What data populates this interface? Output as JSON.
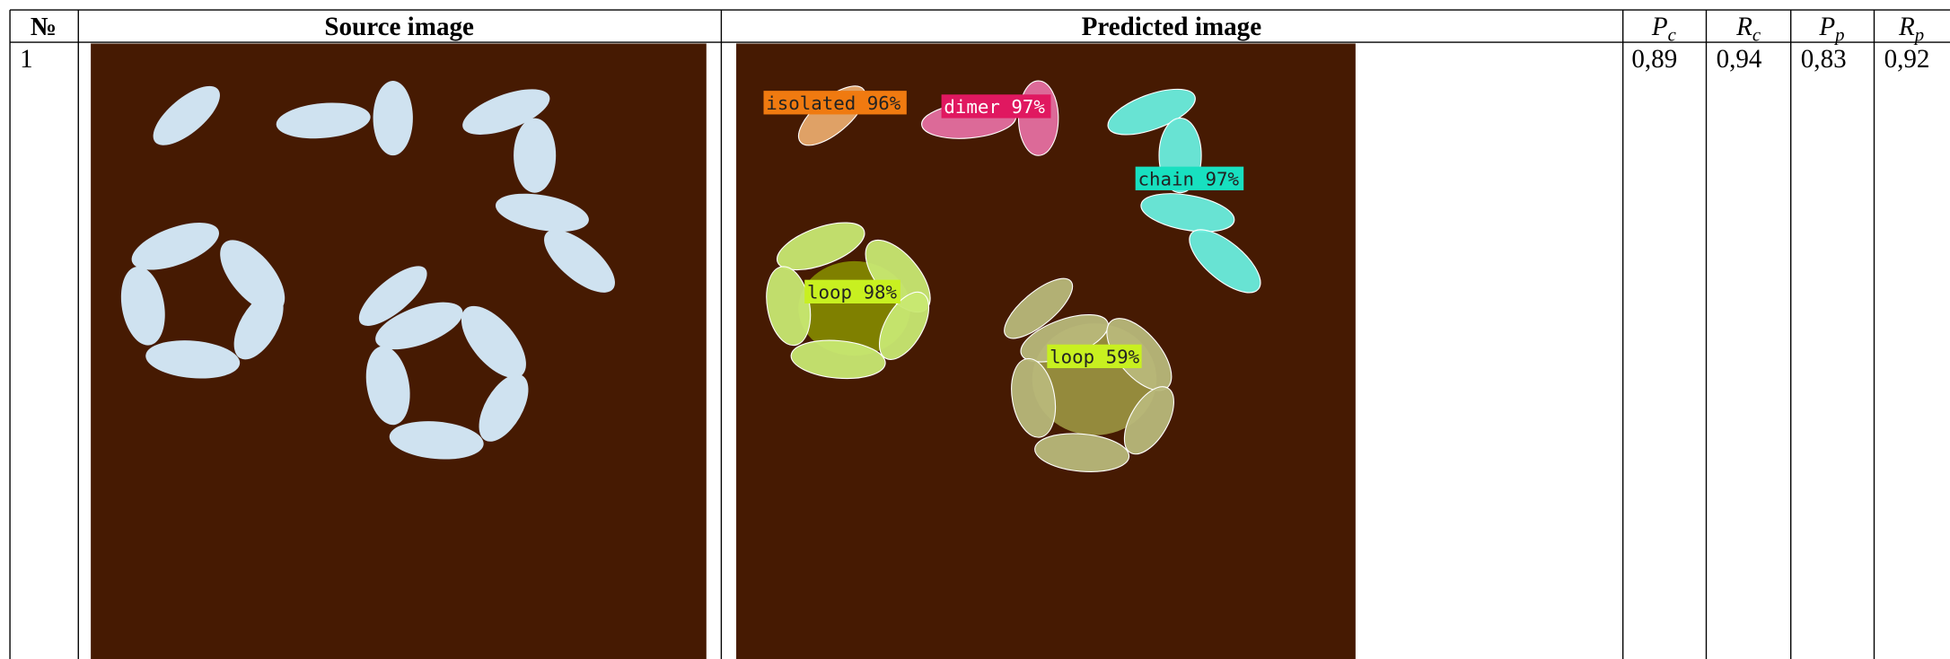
{
  "table": {
    "header": [
      "№",
      "Source image",
      "Predicted image",
      {
        "main": "P",
        "sub": "c"
      },
      {
        "main": "R",
        "sub": "c"
      },
      {
        "main": "P",
        "sub": "p"
      },
      {
        "main": "R",
        "sub": "p"
      }
    ],
    "rows": [
      {
        "number": "1",
        "metrics": [
          "0,89",
          "0,94",
          "0,83",
          "0,92"
        ],
        "predicted_labels": [
          "isolated 96%",
          "dimer 97%",
          "chain 97%",
          "loop 98%",
          "loop 59%"
        ]
      }
    ]
  }
}
